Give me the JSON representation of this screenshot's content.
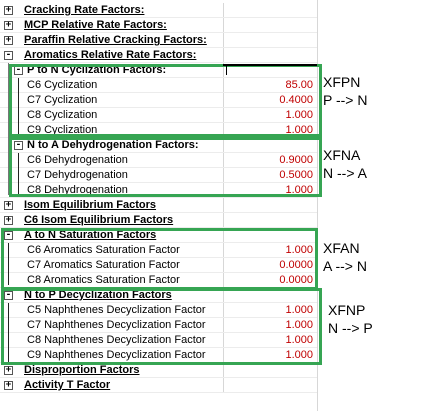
{
  "rows": [
    {
      "type": "sec",
      "label": "Cracking Rate Factors:",
      "exp": "+"
    },
    {
      "type": "sec",
      "label": "MCP Relative Rate Factors:",
      "exp": "+"
    },
    {
      "type": "sec",
      "label": "Paraffin Relative Cracking Factors:",
      "exp": "+"
    },
    {
      "type": "sec",
      "label": "Aromatics Relative Rate Factors:",
      "exp": "-"
    },
    {
      "type": "sub",
      "label": "P to N Cyclization Factors:",
      "exp": "-"
    },
    {
      "type": "item",
      "label": "C6 Cyclization",
      "value": "85.00"
    },
    {
      "type": "item",
      "label": "C7 Cyclization",
      "value": "0.4000"
    },
    {
      "type": "item",
      "label": "C8 Cyclization",
      "value": "1.000"
    },
    {
      "type": "item",
      "label": "C9 Cyclization",
      "value": "1.000"
    },
    {
      "type": "sub",
      "label": "N to A Dehydrogenation Factors:",
      "exp": "-"
    },
    {
      "type": "item",
      "label": "C6 Dehydrogenation",
      "value": "0.9000"
    },
    {
      "type": "item",
      "label": "C7 Dehydrogenation",
      "value": "0.5000"
    },
    {
      "type": "item",
      "label": "C8 Dehydrogenation",
      "value": "1.000"
    },
    {
      "type": "sec",
      "label": "Isom Equilibrium Factors",
      "exp": "+"
    },
    {
      "type": "sec",
      "label": "C6 Isom Equilibrium Factors",
      "exp": "+"
    },
    {
      "type": "sec",
      "label": "A to N Saturation Factors",
      "exp": "-"
    },
    {
      "type": "item",
      "label": "C6 Aromatics Saturation Factor",
      "value": "1.000"
    },
    {
      "type": "item",
      "label": "C7 Aromatics Saturation Factor",
      "value": "0.0000"
    },
    {
      "type": "item",
      "label": "C8 Aromatics Saturation Factor",
      "value": "0.0000"
    },
    {
      "type": "sec",
      "label": "N to P Decyclization Factors",
      "exp": "-"
    },
    {
      "type": "item",
      "label": "C5 Naphthenes Decyclization Factor",
      "value": "1.000"
    },
    {
      "type": "item",
      "label": "C7 Naphthenes Decyclization Factor",
      "value": "1.000"
    },
    {
      "type": "item",
      "label": "C8 Naphthenes Decyclization Factor",
      "value": "1.000"
    },
    {
      "type": "item",
      "label": "C9 Naphthenes Decyclization Factor",
      "value": "1.000"
    },
    {
      "type": "sec",
      "label": "Disproportion Factors",
      "exp": "+"
    },
    {
      "type": "sec",
      "label": "Activity T Factor",
      "exp": "+"
    }
  ],
  "annotations": {
    "xfpn": {
      "name": "XFPN",
      "desc": "P --> N"
    },
    "xfna": {
      "name": "XFNA",
      "desc": "N --> A"
    },
    "xfan": {
      "name": "XFAN",
      "desc": "A --> N"
    },
    "xfnp": {
      "name": "XFNP",
      "desc": "N --> P"
    }
  },
  "colors": {
    "value_text": "#c00000",
    "highlight_box": "#36a553"
  }
}
